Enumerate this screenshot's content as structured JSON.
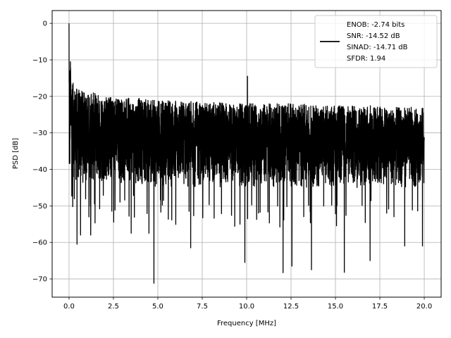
{
  "chart_data": {
    "type": "line",
    "title": "",
    "xlabel": "Frequency [MHz]",
    "ylabel": "PSD [dB]",
    "xlim": [
      -0.95,
      20.95
    ],
    "ylim": [
      -75,
      3.5
    ],
    "grid": true,
    "legend_position": "top-right",
    "x_ticks": [
      0.0,
      2.5,
      5.0,
      7.5,
      10.0,
      12.5,
      15.0,
      17.5,
      20.0
    ],
    "x_tick_labels": [
      "0.0",
      "2.5",
      "5.0",
      "7.5",
      "10.0",
      "12.5",
      "15.0",
      "17.5",
      "20.0"
    ],
    "y_ticks": [
      0,
      -10,
      -20,
      -30,
      -40,
      -50,
      -60,
      -70
    ],
    "y_tick_labels": [
      "0",
      "−10",
      "−20",
      "−30",
      "−40",
      "−50",
      "−60",
      "−70"
    ],
    "series": [
      {
        "color": "#000000",
        "name": "",
        "envelope_x": [
          0.0,
          0.05,
          0.1,
          0.2,
          0.3,
          0.5,
          1.0,
          1.5,
          2.0,
          2.5,
          3.0,
          4.0,
          5.0,
          6.0,
          7.0,
          8.0,
          9.0,
          10.0,
          11.0,
          12.0,
          13.0,
          14.0,
          15.0,
          16.0,
          17.0,
          18.0,
          19.0,
          20.0
        ],
        "envelope_upper": [
          0,
          -10.5,
          -12,
          -16,
          -17,
          -18,
          -19,
          -19,
          -19.5,
          -20,
          -20.5,
          -20.5,
          -21,
          -21,
          -21.5,
          -21.5,
          -22,
          -22,
          -22,
          -22,
          -22,
          -22.5,
          -22.5,
          -22.5,
          -22.5,
          -23,
          -23,
          -23
        ],
        "envelope_lower": [
          -54,
          -45,
          -42,
          -42,
          -43,
          -44,
          -44,
          -44,
          -44,
          -44,
          -44,
          -44,
          -45,
          -45,
          -45,
          -45,
          -45,
          -45,
          -45,
          -45,
          -45,
          -45,
          -45,
          -45,
          -45,
          -45,
          -45,
          -45
        ],
        "peaks": [
          {
            "x": 0.0,
            "y": 0.0
          },
          {
            "x": 0.08,
            "y": -10.5
          },
          {
            "x": 0.45,
            "y": -60.5
          },
          {
            "x": 0.65,
            "y": -58
          },
          {
            "x": 1.22,
            "y": -58
          },
          {
            "x": 3.5,
            "y": -57.5
          },
          {
            "x": 4.5,
            "y": -57.5
          },
          {
            "x": 4.78,
            "y": -71.2
          },
          {
            "x": 6.85,
            "y": -61.5
          },
          {
            "x": 9.9,
            "y": -65.5
          },
          {
            "x": 10.05,
            "y": -14.5
          },
          {
            "x": 12.05,
            "y": -68.3
          },
          {
            "x": 12.55,
            "y": -66.5
          },
          {
            "x": 13.65,
            "y": -67.5
          },
          {
            "x": 15.5,
            "y": -68.2
          },
          {
            "x": 16.95,
            "y": -65
          },
          {
            "x": 18.9,
            "y": -61
          },
          {
            "x": 19.9,
            "y": -61
          }
        ]
      }
    ],
    "legend": {
      "lines": [
        "ENOB: -2.74 bits",
        "SNR: -14.52 dB",
        "SINAD: -14.71 dB",
        "SFDR: 1.94"
      ]
    }
  }
}
